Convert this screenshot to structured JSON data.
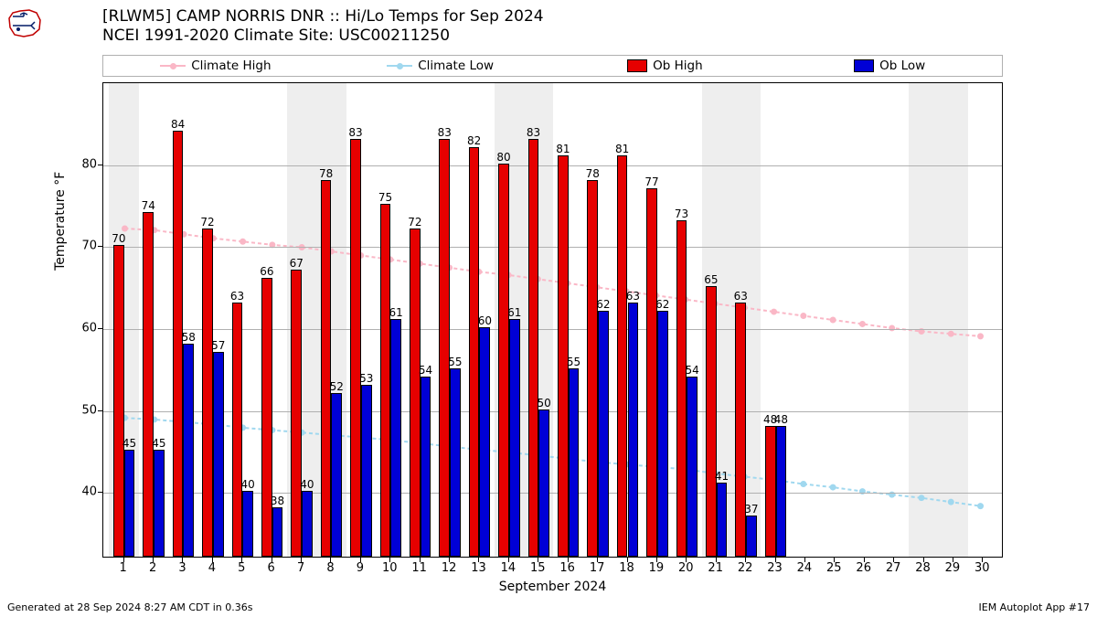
{
  "title_line1": "[RLWM5] CAMP NORRIS DNR :: Hi/Lo Temps for Sep 2024",
  "title_line2": "NCEI 1991-2020 Climate Site: USC00211250",
  "legend": {
    "climate_high": "Climate High",
    "climate_low": "Climate Low",
    "ob_high": "Ob High",
    "ob_low": "Ob Low"
  },
  "colors": {
    "climate_high_line": "#fab7c6",
    "climate_low_line": "#a0d8ef",
    "ob_high_bar": "#e60000",
    "ob_low_bar": "#0000d6",
    "bar_edge": "#000000",
    "weekend_bg": "#eeeeee",
    "grid": "#b0b0b0",
    "plot_bg": "#ffffff",
    "text": "#000000"
  },
  "axes": {
    "ylabel": "Temperature °F",
    "xlabel": "September 2024",
    "ylim_min": 32,
    "ylim_max": 90,
    "yticks": [
      40,
      50,
      60,
      70,
      80
    ],
    "xdays": [
      1,
      2,
      3,
      4,
      5,
      6,
      7,
      8,
      9,
      10,
      11,
      12,
      13,
      14,
      15,
      16,
      17,
      18,
      19,
      20,
      21,
      22,
      23,
      24,
      25,
      26,
      27,
      28,
      29,
      30
    ],
    "xlim_min": 0.3,
    "xlim_max": 30.7
  },
  "weekend_days": [
    1,
    7,
    8,
    14,
    15,
    21,
    22,
    28,
    29
  ],
  "bar_half_width": 0.36,
  "chart": {
    "days": [
      1,
      2,
      3,
      4,
      5,
      6,
      7,
      8,
      9,
      10,
      11,
      12,
      13,
      14,
      15,
      16,
      17,
      18,
      19,
      20,
      21,
      22,
      23
    ],
    "ob_high": [
      70,
      74,
      84,
      72,
      63,
      66,
      67,
      78,
      83,
      75,
      72,
      83,
      82,
      80,
      83,
      81,
      78,
      81,
      77,
      73,
      65,
      63,
      48
    ],
    "ob_low": [
      45,
      45,
      58,
      57,
      40,
      38,
      40,
      52,
      53,
      61,
      54,
      55,
      60,
      61,
      50,
      55,
      62,
      63,
      62,
      54,
      41,
      37,
      48
    ],
    "climate_high_days": [
      1,
      2,
      3,
      4,
      5,
      6,
      7,
      8,
      9,
      10,
      11,
      12,
      13,
      14,
      15,
      16,
      17,
      18,
      19,
      20,
      21,
      22,
      23,
      24,
      25,
      26,
      27,
      28,
      29,
      30
    ],
    "climate_high": [
      72.2,
      72.0,
      71.5,
      71.0,
      70.6,
      70.2,
      69.9,
      69.4,
      68.9,
      68.4,
      67.9,
      67.4,
      66.9,
      66.5,
      66.0,
      65.5,
      65.0,
      64.5,
      64.0,
      63.5,
      63.0,
      62.5,
      62.0,
      61.5,
      61.0,
      60.5,
      60.0,
      59.6,
      59.3,
      59.0
    ],
    "climate_low_days": [
      1,
      2,
      3,
      4,
      5,
      6,
      7,
      8,
      9,
      10,
      11,
      12,
      13,
      14,
      15,
      16,
      17,
      18,
      19,
      20,
      21,
      22,
      23,
      24,
      25,
      26,
      27,
      28,
      29,
      30
    ],
    "climate_low": [
      49.0,
      48.8,
      48.5,
      48.2,
      47.8,
      47.5,
      47.2,
      46.9,
      46.6,
      46.3,
      45.9,
      45.5,
      45.1,
      44.8,
      44.4,
      44.0,
      43.6,
      43.3,
      43.0,
      42.7,
      42.2,
      41.8,
      41.4,
      40.9,
      40.5,
      40.0,
      39.6,
      39.2,
      38.7,
      38.2
    ]
  },
  "footer": {
    "left": "Generated at 28 Sep 2024 8:27 AM CDT in 0.36s",
    "right": "IEM Autoplot App #17"
  },
  "fontsize": {
    "title": 17,
    "legend": 13.5,
    "tick": 13,
    "axis_label": 14,
    "bar_label": 12,
    "footer": 11
  }
}
